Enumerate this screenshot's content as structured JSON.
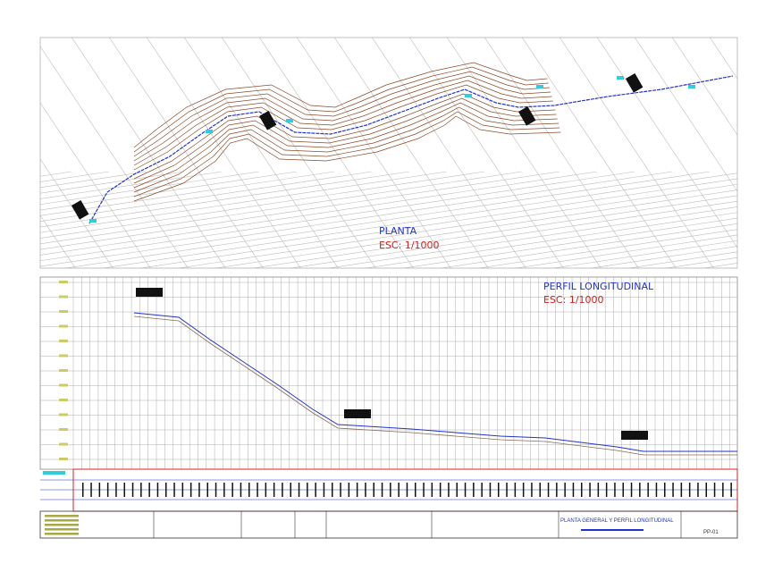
{
  "plan": {
    "title": "PLANTA",
    "scale": "ESC: 1/1000"
  },
  "profile": {
    "title": "PERFIL LONGITUDINAL",
    "scale": "ESC: 1/1000"
  },
  "title_block": {
    "sheet_title": "PLANTA GENERAL Y PERFIL LONGITUDINAL",
    "sheet_number": "PP-01"
  }
}
